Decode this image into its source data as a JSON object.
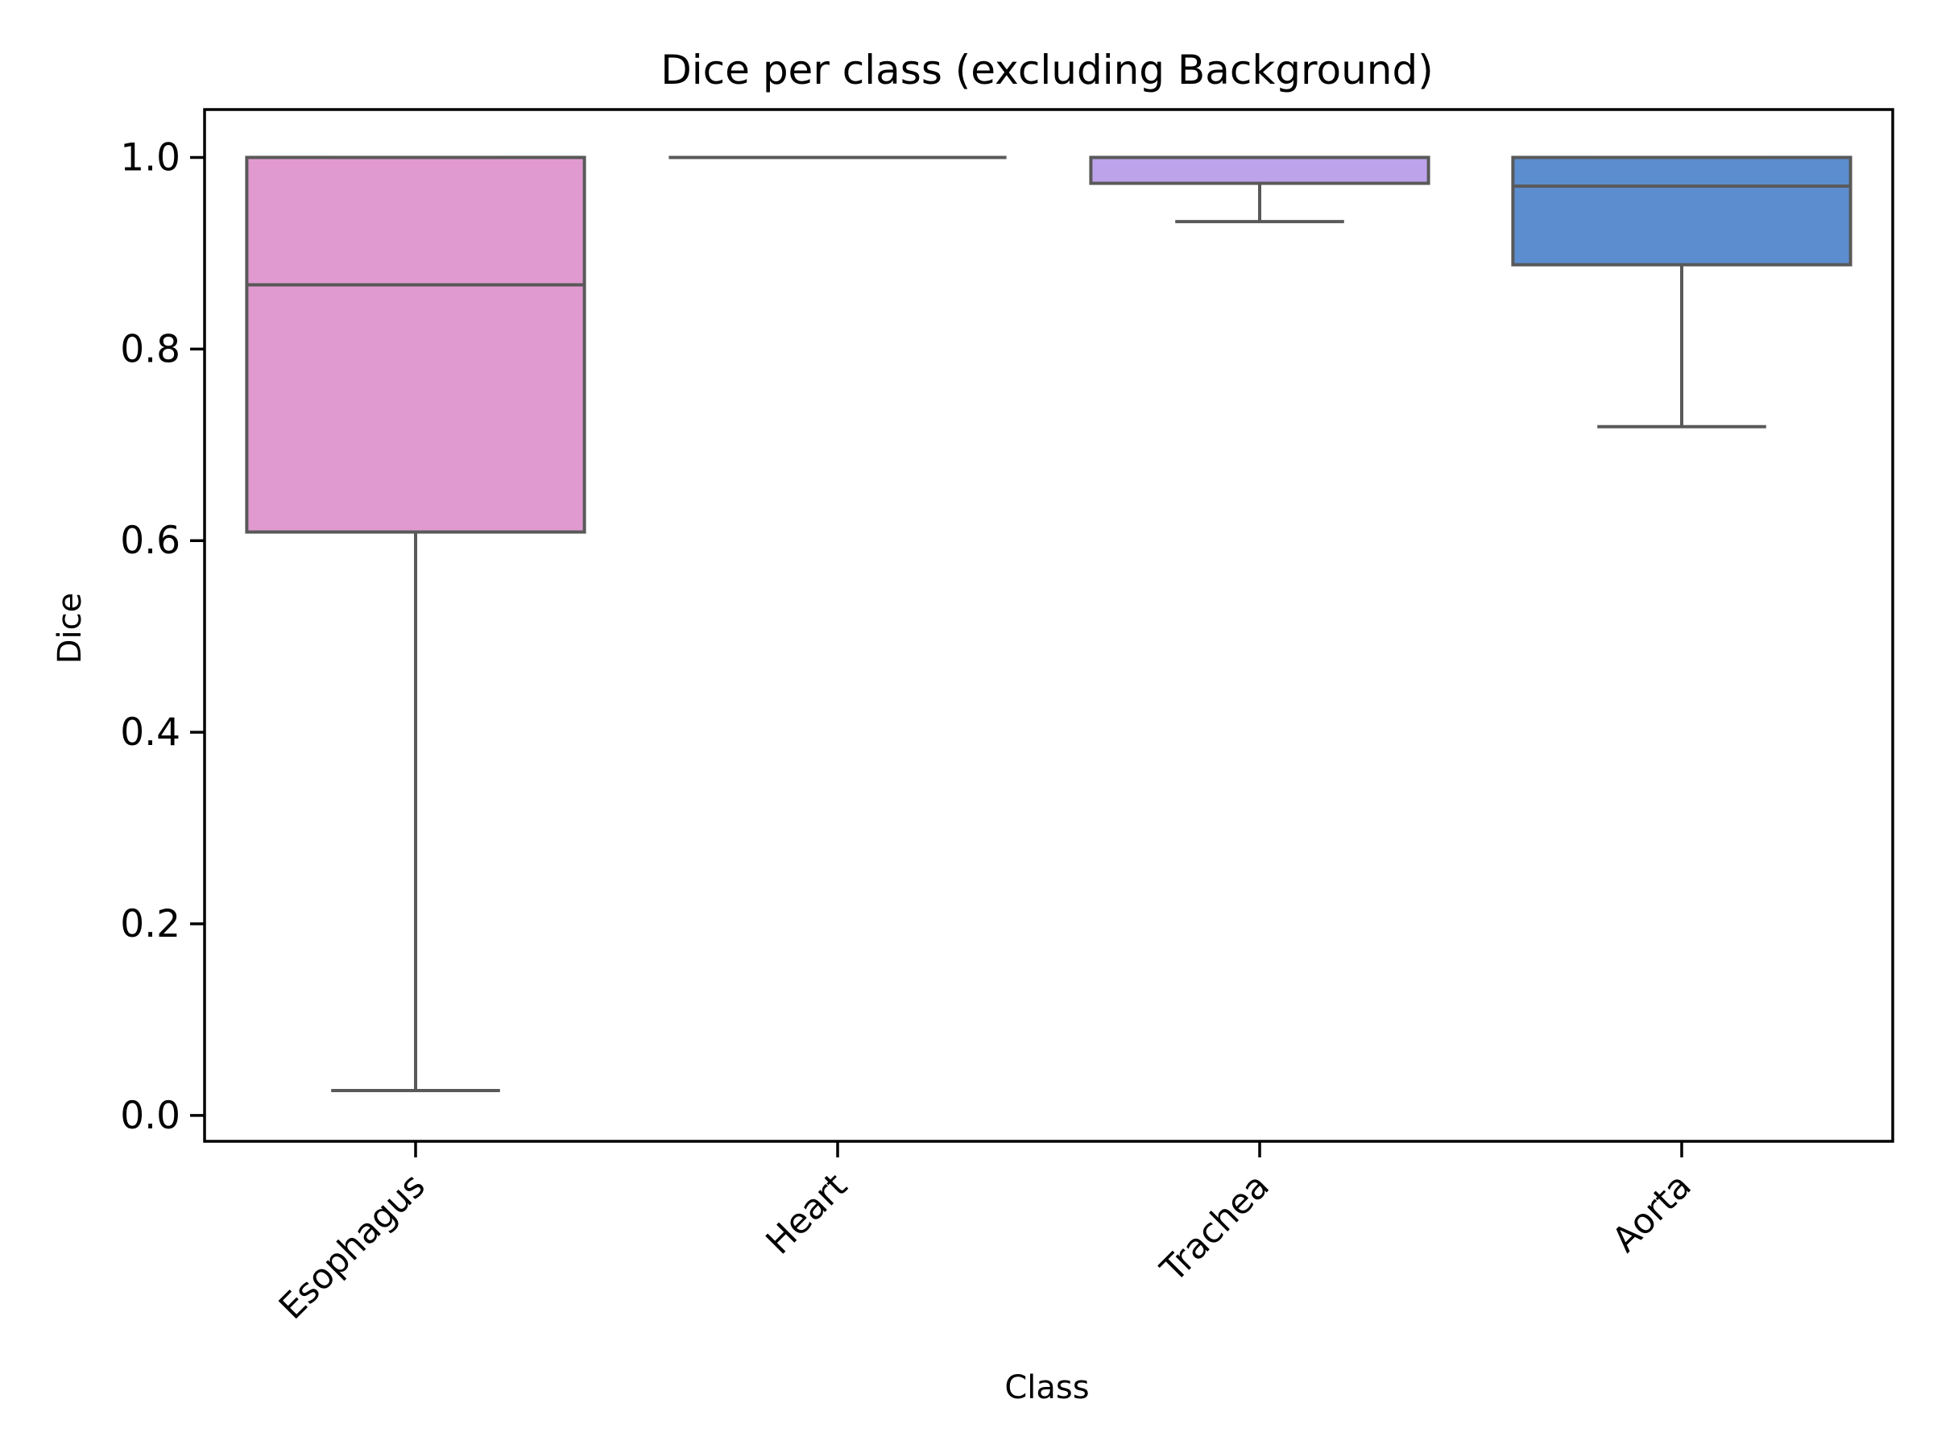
{
  "chart_data": {
    "type": "box",
    "title": "Dice per class (excluding Background)",
    "xlabel": "Class",
    "ylabel": "Dice",
    "ylim": [
      -0.027,
      1.05
    ],
    "yticks": [
      0.0,
      0.2,
      0.4,
      0.6,
      0.8,
      1.0
    ],
    "ytick_labels": [
      "0.0",
      "0.2",
      "0.4",
      "0.6",
      "0.8",
      "1.0"
    ],
    "categories": [
      "Esophagus",
      "Heart",
      "Trachea",
      "Aorta"
    ],
    "boxes": [
      {
        "category": "Esophagus",
        "whislo": 0.026,
        "q1": 0.609,
        "med": 0.867,
        "q3": 1.0,
        "whishi": 1.0,
        "color": "#e09ad0"
      },
      {
        "category": "Heart",
        "whislo": 1.0,
        "q1": 1.0,
        "med": 1.0,
        "q3": 1.0,
        "whishi": 1.0,
        "color": "#c8c8f0"
      },
      {
        "category": "Trachea",
        "whislo": 0.933,
        "q1": 0.973,
        "med": 1.0,
        "q3": 1.0,
        "whishi": 1.0,
        "color": "#bda3ea"
      },
      {
        "category": "Aorta",
        "whislo": 0.719,
        "q1": 0.888,
        "med": 0.97,
        "q3": 1.0,
        "whishi": 1.0,
        "color": "#5c8ecf"
      }
    ],
    "line_color": "#595959",
    "grid": false,
    "legend": false
  }
}
